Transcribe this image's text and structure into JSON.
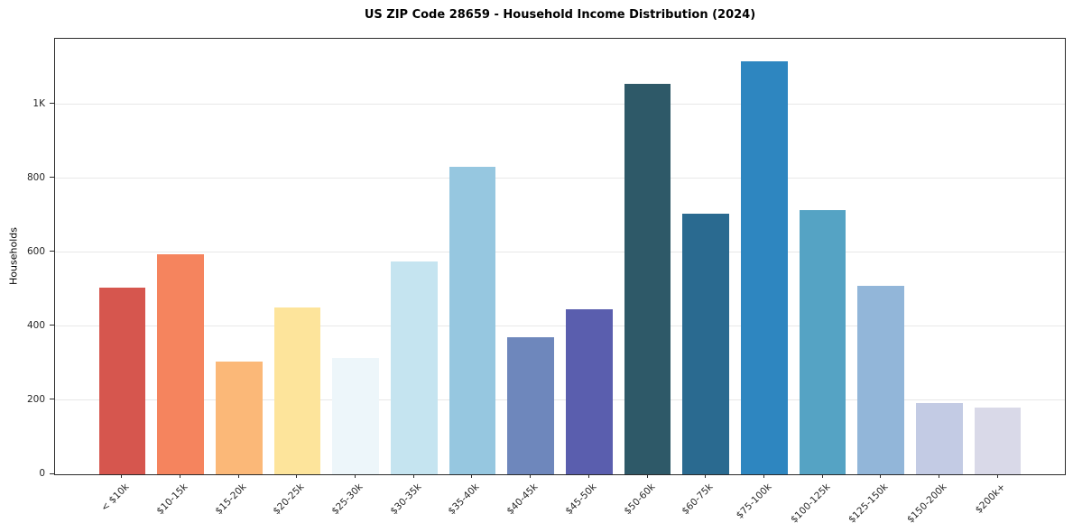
{
  "chart_data": {
    "type": "bar",
    "title": "US ZIP Code 28659 - Household Income Distribution (2024)",
    "xlabel": "",
    "ylabel": "Households",
    "ylim": [
      0,
      1177
    ],
    "grid": true,
    "legend": false,
    "yticks": [
      {
        "value": 0,
        "label": "0"
      },
      {
        "value": 200,
        "label": "200"
      },
      {
        "value": 400,
        "label": "400"
      },
      {
        "value": 600,
        "label": "600"
      },
      {
        "value": 800,
        "label": "800"
      },
      {
        "value": 1000,
        "label": "1K"
      }
    ],
    "categories": [
      "< $10k",
      "$10-15k",
      "$15-20k",
      "$20-25k",
      "$25-30k",
      "$30-35k",
      "$35-40k",
      "$40-45k",
      "$45-50k",
      "$50-60k",
      "$60-75k",
      "$75-100k",
      "$100-125k",
      "$125-150k",
      "$150-200k",
      "$200k+"
    ],
    "values": [
      505,
      595,
      305,
      450,
      315,
      575,
      830,
      370,
      445,
      1055,
      705,
      1115,
      715,
      510,
      192,
      180
    ],
    "colors": [
      "#d6564e",
      "#f5845e",
      "#fbb878",
      "#fde49b",
      "#edf6fa",
      "#c5e4f0",
      "#96c7e0",
      "#6e87bc",
      "#5a5eae",
      "#2e5968",
      "#2a6a90",
      "#2e86c0",
      "#55a3c4",
      "#92b6d9",
      "#c3cbe4",
      "#d9d9e8"
    ]
  }
}
